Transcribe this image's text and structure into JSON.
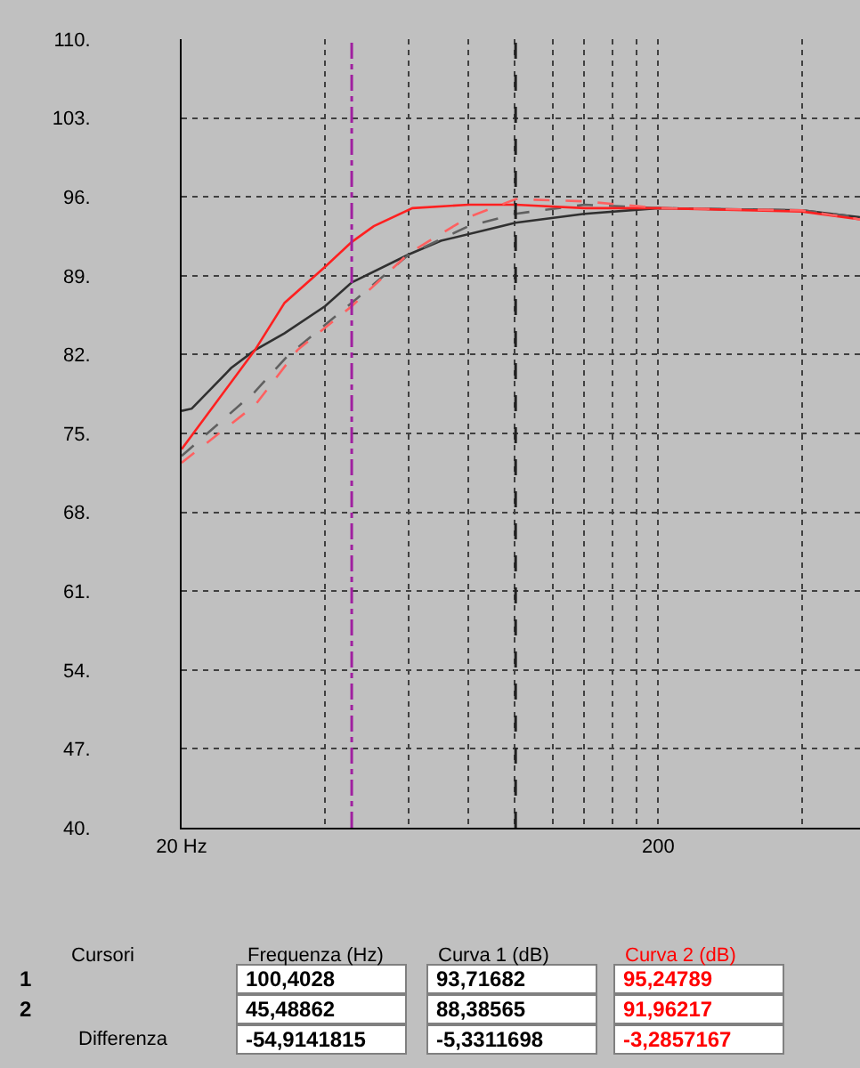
{
  "chart_data": {
    "type": "line",
    "xlabel": null,
    "log": "x",
    "xlim": [
      20,
      530
    ],
    "xticks": [
      {
        "value": 20,
        "label": "20 Hz"
      },
      {
        "value": 40,
        "label": null
      },
      {
        "value": 60,
        "label": null
      },
      {
        "value": 80,
        "label": null
      },
      {
        "value": 100,
        "label": null
      },
      {
        "value": 120,
        "label": null
      },
      {
        "value": 140,
        "label": null
      },
      {
        "value": 160,
        "label": null
      },
      {
        "value": 180,
        "label": null
      },
      {
        "value": 200,
        "label": "200"
      },
      {
        "value": 400,
        "label": null
      }
    ],
    "ylim": [
      40,
      110
    ],
    "yticks": [
      {
        "value": 40,
        "label": "40."
      },
      {
        "value": 47,
        "label": "47."
      },
      {
        "value": 54,
        "label": "54."
      },
      {
        "value": 61,
        "label": "61."
      },
      {
        "value": 68,
        "label": "68."
      },
      {
        "value": 75,
        "label": "75."
      },
      {
        "value": 82,
        "label": "82."
      },
      {
        "value": 89,
        "label": "89."
      },
      {
        "value": 96,
        "label": "96."
      },
      {
        "value": 103,
        "label": "103."
      },
      {
        "value": 110,
        "label": "110."
      }
    ],
    "grid": true,
    "marker": "none",
    "series": [
      {
        "color": "#303030",
        "line_style": "solid",
        "x": [
          20,
          21,
          25.4,
          28.5,
          32.9,
          40,
          45.5,
          60,
          70,
          100.4,
          140,
          200,
          400,
          530
        ],
        "values": [
          77.0,
          77.2,
          80.8,
          82.4,
          83.9,
          86.3,
          88.4,
          90.9,
          92.1,
          93.7,
          94.5,
          95.0,
          94.8,
          94.2
        ]
      },
      {
        "color": "#606060",
        "line_style": "dashed",
        "x": [
          20,
          28.5,
          33.4,
          45.5,
          60,
          80,
          100.4,
          140,
          200,
          400,
          530
        ],
        "values": [
          73.0,
          78.7,
          81.9,
          86.6,
          90.9,
          93.4,
          94.5,
          95.3,
          95.0,
          94.8,
          94.2
        ]
      },
      {
        "color": "#ff2020",
        "line_style": "solid",
        "x": [
          20,
          28.5,
          32.9,
          40,
          45.5,
          50.6,
          61,
          80,
          100.4,
          140,
          200,
          400,
          530
        ],
        "values": [
          73.6,
          82.4,
          86.6,
          89.8,
          92.0,
          93.4,
          95.0,
          95.3,
          95.3,
          95.0,
          95.0,
          94.7,
          94.0
        ]
      },
      {
        "color": "#ff6060",
        "line_style": "dashed",
        "x": [
          20,
          28.5,
          35,
          45.5,
          60,
          80,
          100.4,
          140,
          200,
          400,
          530
        ],
        "values": [
          72.4,
          77.5,
          82.4,
          86.3,
          91.0,
          94.2,
          95.8,
          95.6,
          95.0,
          94.8,
          94.0
        ]
      }
    ],
    "ref_lines": [
      {
        "axis": "x",
        "value": 100.4028,
        "color": "#202020",
        "line_style": "dashed"
      },
      {
        "axis": "x",
        "value": 45.48862,
        "color": "#a020a0",
        "line_style": "dashdot"
      }
    ],
    "annotations": [
      "Cursori",
      "Frequenza (Hz)",
      "Curva 1 (dB)",
      "Curva 2 (dB)",
      "1",
      "100,4028",
      "93,71682",
      "95,24789",
      "2",
      "45,48862",
      "88,38565",
      "91,96217",
      "Differenza",
      "-54,9141815",
      "-5,3311698",
      "-3,2857167"
    ]
  }
}
